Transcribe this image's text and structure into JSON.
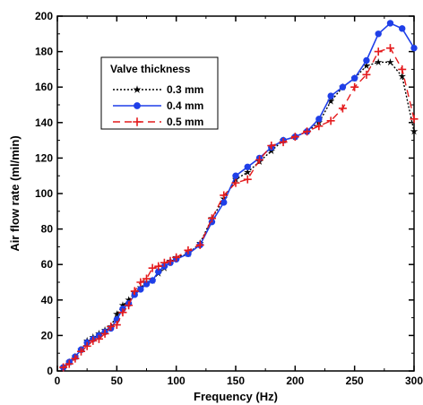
{
  "chart_data": {
    "type": "line",
    "xlabel": "Frequency (Hz)",
    "ylabel": "Air flow rate (ml/min)",
    "xlim": [
      0,
      300
    ],
    "ylim": [
      0,
      200
    ],
    "x_ticks": [
      0,
      50,
      100,
      150,
      200,
      250,
      300
    ],
    "y_ticks": [
      0,
      20,
      40,
      60,
      80,
      100,
      120,
      140,
      160,
      180,
      200
    ],
    "x_tick_labels": [
      "0",
      "50",
      "100",
      "150",
      "200",
      "250",
      "300"
    ],
    "y_tick_labels": [
      "0",
      "20",
      "40",
      "60",
      "80",
      "100",
      "120",
      "140",
      "160",
      "180",
      "200"
    ],
    "grid": false,
    "legend": {
      "title": "Valve thickness",
      "position": "upper-left"
    },
    "series": [
      {
        "name": "0.3 mm",
        "color": "#000000",
        "line": "dotted",
        "marker": "star",
        "x": [
          5,
          10,
          15,
          20,
          25,
          30,
          35,
          40,
          45,
          50,
          55,
          60,
          65,
          70,
          75,
          80,
          85,
          90,
          95,
          100,
          110,
          120,
          130,
          140,
          150,
          160,
          170,
          180,
          190,
          200,
          210,
          220,
          230,
          240,
          250,
          260,
          270,
          280,
          290,
          300
        ],
        "y": [
          2,
          5,
          8,
          12,
          17,
          19,
          21,
          23,
          25,
          32,
          37,
          40,
          44,
          47,
          50,
          51,
          55,
          58,
          62,
          64,
          66,
          72,
          86,
          97,
          108,
          112,
          118,
          124,
          130,
          132,
          135,
          140,
          152,
          160,
          165,
          172,
          174,
          174,
          166,
          135
        ]
      },
      {
        "name": "0.4 mm",
        "color": "#1f3fe8",
        "line": "solid",
        "marker": "circle",
        "x": [
          5,
          10,
          15,
          20,
          25,
          30,
          35,
          40,
          45,
          50,
          55,
          60,
          65,
          70,
          75,
          80,
          85,
          90,
          95,
          100,
          110,
          120,
          130,
          140,
          150,
          160,
          170,
          180,
          190,
          200,
          210,
          220,
          230,
          240,
          250,
          260,
          270,
          280,
          290,
          300
        ],
        "y": [
          2,
          5,
          8,
          12,
          16,
          18,
          20,
          22,
          24,
          29,
          35,
          38,
          43,
          46,
          49,
          51,
          56,
          59,
          61,
          63,
          66,
          71,
          84,
          95,
          110,
          115,
          120,
          126,
          130,
          132,
          135,
          142,
          155,
          160,
          165,
          175,
          190,
          196,
          193,
          182
        ]
      },
      {
        "name": "0.5 mm",
        "color": "#e41a1c",
        "line": "dashed",
        "marker": "plus",
        "x": [
          5,
          10,
          15,
          20,
          25,
          30,
          35,
          40,
          45,
          50,
          55,
          60,
          65,
          70,
          75,
          80,
          85,
          90,
          95,
          100,
          110,
          120,
          130,
          140,
          150,
          160,
          170,
          180,
          190,
          200,
          210,
          220,
          230,
          240,
          250,
          260,
          270,
          280,
          290,
          300
        ],
        "y": [
          2,
          4,
          7,
          11,
          14,
          17,
          18,
          21,
          25,
          26,
          33,
          37,
          45,
          50,
          52,
          58,
          59,
          61,
          62,
          64,
          68,
          71,
          86,
          99,
          106,
          108,
          119,
          127,
          129,
          132,
          135,
          138,
          141,
          148,
          160,
          167,
          180,
          182,
          170,
          142
        ]
      }
    ]
  }
}
